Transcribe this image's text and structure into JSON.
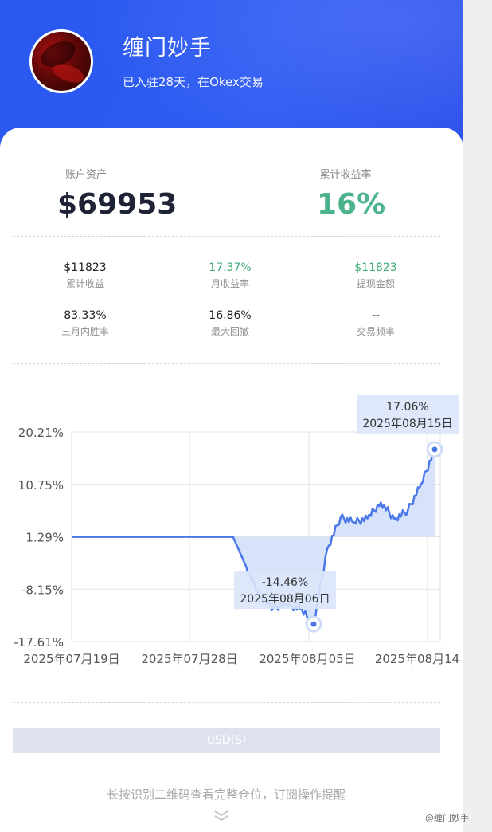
{
  "profile": {
    "name": "缠门妙手",
    "subtitle": "已入驻28天，在Okex交易"
  },
  "summary": {
    "asset_label": "账户资产",
    "asset_value": "$69953",
    "rate_label": "累计收益率",
    "rate_value": "16%"
  },
  "stats": [
    {
      "value": "$11823",
      "label": "累计收益"
    },
    {
      "value": "17.37%",
      "label": "月收益率"
    },
    {
      "value": "$11823",
      "label": "提现金额"
    },
    {
      "value": "83.33%",
      "label": "三月内胜率"
    },
    {
      "value": "16.86%",
      "label": "最大回撤"
    },
    {
      "value": "--",
      "label": "交易频率"
    }
  ],
  "chart_data": {
    "type": "area",
    "y_ticks": [
      "20.21%",
      "10.75%",
      "1.29%",
      "-8.15%",
      "-17.61%"
    ],
    "ylim": [
      -17.61,
      20.21
    ],
    "x_ticks": [
      "2025年07月19日",
      "2025年07月28日",
      "2025年08月05日",
      "2025年08月14"
    ],
    "baseline": 1.29,
    "series": [
      {
        "x": [
          "2025-07-19",
          "2025-07-24",
          "2025-07-28",
          "2025-07-31",
          "2025-08-01",
          "2025-08-02",
          "2025-08-03",
          "2025-08-04",
          "2025-08-05",
          "2025-08-06",
          "2025-08-07",
          "2025-08-08",
          "2025-08-09",
          "2025-08-10",
          "2025-08-11",
          "2025-08-12",
          "2025-08-13",
          "2025-08-14",
          "2025-08-15"
        ],
        "y": [
          1.29,
          1.29,
          1.29,
          1.29,
          -4.2,
          -9.6,
          -11.6,
          -10.9,
          -11.8,
          -14.46,
          -1.0,
          4.8,
          3.9,
          4.6,
          7.5,
          4.5,
          6.0,
          10.8,
          17.06
        ]
      }
    ],
    "annotations": [
      {
        "value": "17.06%",
        "date": "2025年08月15日",
        "kind": "max"
      },
      {
        "value": "-14.46%",
        "date": "2025年08月06日",
        "kind": "min"
      }
    ],
    "line_color": "#4a78e8",
    "fill_color": "#d4e1fb",
    "grid": true
  },
  "footer": {
    "currency": "USD(S)",
    "hint": "长按识别二维码查看完整仓位，订阅操作提醒",
    "watermark": "@缠门妙手"
  }
}
